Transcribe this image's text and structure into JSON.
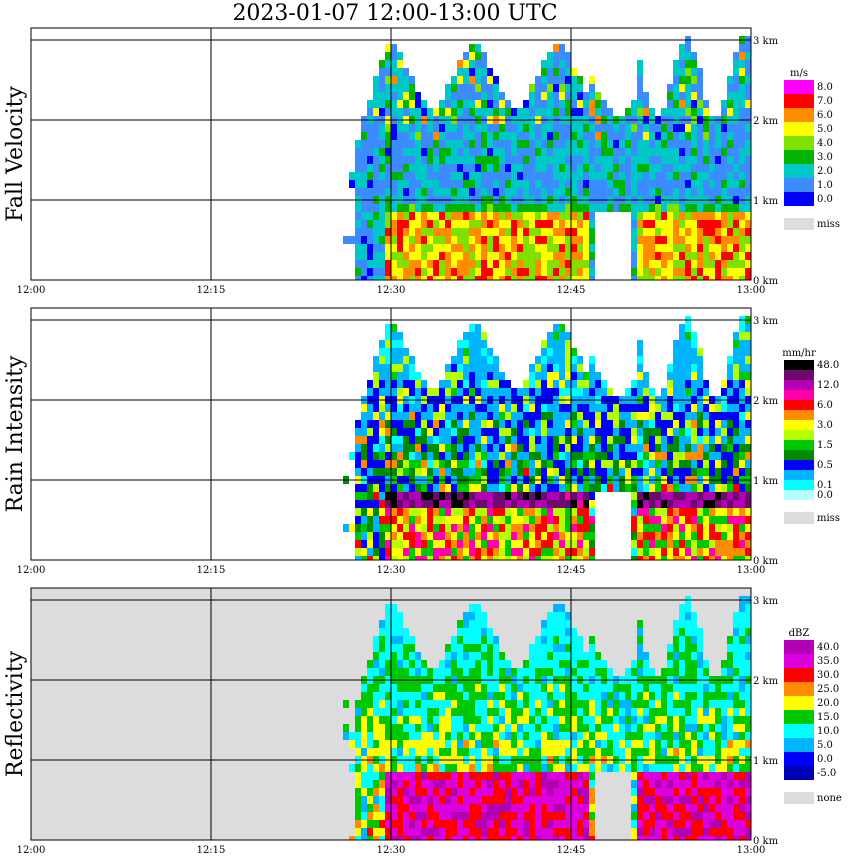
{
  "title": "2023-01-07   12:00-13:00 UTC",
  "x_ticks": [
    "12:00",
    "12:15",
    "12:30",
    "12:45",
    "13:00"
  ],
  "height_ticks": [
    "0 km",
    "1 km",
    "2 km",
    "3 km"
  ],
  "panels": [
    {
      "id": "fall-velocity",
      "ylabel": "Fall Velocity",
      "unit": "m/s",
      "legend": [
        {
          "label": "8.0",
          "color": "#ff00ff"
        },
        {
          "label": "7.0",
          "color": "#ff0000"
        },
        {
          "label": "6.0",
          "color": "#ff8c00"
        },
        {
          "label": "5.0",
          "color": "#ffff00"
        },
        {
          "label": "4.0",
          "color": "#80e000"
        },
        {
          "label": "3.0",
          "color": "#00b400"
        },
        {
          "label": "2.0",
          "color": "#00c8c8"
        },
        {
          "label": "1.0",
          "color": "#3c8cff"
        },
        {
          "label": "0.0",
          "color": "#0000ff"
        }
      ],
      "missing": {
        "label": "miss",
        "color": "#dcdcdc"
      }
    },
    {
      "id": "rain-intensity",
      "ylabel": "Rain Intensity",
      "unit": "mm/hr",
      "legend": [
        {
          "label": "48.0",
          "color": "#000000"
        },
        {
          "label": "",
          "color": "#6e0a6e"
        },
        {
          "label": "12.0",
          "color": "#b400b4"
        },
        {
          "label": "",
          "color": "#ff00aa"
        },
        {
          "label": "6.0",
          "color": "#ff0000"
        },
        {
          "label": "",
          "color": "#ff8c00"
        },
        {
          "label": "3.0",
          "color": "#ffff00"
        },
        {
          "label": "",
          "color": "#b4ff00"
        },
        {
          "label": "1.5",
          "color": "#00c800"
        },
        {
          "label": "",
          "color": "#008c00"
        },
        {
          "label": "0.5",
          "color": "#0000ff"
        },
        {
          "label": "",
          "color": "#00b4ff"
        },
        {
          "label": "0.1",
          "color": "#00ffff"
        },
        {
          "label": "0.0",
          "color": "#b4ffff"
        }
      ],
      "missing": {
        "label": "miss",
        "color": "#dcdcdc"
      }
    },
    {
      "id": "reflectivity",
      "ylabel": "Reflectivity",
      "unit": "dBZ",
      "legend": [
        {
          "label": "40.0",
          "color": "#b400b4"
        },
        {
          "label": "35.0",
          "color": "#dc00dc"
        },
        {
          "label": "30.0",
          "color": "#ff0000"
        },
        {
          "label": "25.0",
          "color": "#ff8c00"
        },
        {
          "label": "20.0",
          "color": "#ffff00"
        },
        {
          "label": "15.0",
          "color": "#00c800"
        },
        {
          "label": "10.0",
          "color": "#00ffff"
        },
        {
          "label": "5.0",
          "color": "#00b4ff"
        },
        {
          "label": "0.0",
          "color": "#0000ff"
        },
        {
          "label": "-5.0",
          "color": "#0000b4"
        }
      ],
      "missing": {
        "label": "none",
        "color": "#dcdcdc"
      }
    }
  ],
  "chart_data": [
    {
      "type": "heatmap",
      "title": "2023-01-07   12:00-13:00 UTC",
      "ylabel": "Fall Velocity",
      "colorbar_unit": "m/s",
      "x_range": [
        "12:00",
        "13:00"
      ],
      "y_range_km": [
        0,
        3.2
      ],
      "grid": true,
      "features": {
        "rain_layer_km": [
          0,
          0.9
        ],
        "rain_fall_velocity_mps": [
          4.0,
          7.0
        ],
        "snow_layer_km": [
          0.9,
          2.8
        ],
        "snow_fall_velocity_mps": [
          0.5,
          2.0
        ],
        "rain_periods": [
          [
            "12:30",
            "12:46"
          ],
          [
            "12:51",
            "13:00"
          ]
        ]
      }
    },
    {
      "type": "heatmap",
      "ylabel": "Rain Intensity",
      "colorbar_unit": "mm/hr",
      "x_range": [
        "12:00",
        "13:00"
      ],
      "y_range_km": [
        0,
        3.2
      ],
      "grid": true,
      "features": {
        "bright_band_km": 0.85,
        "bright_band_intensity_mmhr": 48.0,
        "rain_periods": [
          [
            "12:30",
            "12:46"
          ],
          [
            "12:51",
            "13:00"
          ]
        ]
      }
    },
    {
      "type": "heatmap",
      "ylabel": "Reflectivity",
      "colorbar_unit": "dBZ",
      "x_range": [
        "12:00",
        "13:00"
      ],
      "y_range_km": [
        0,
        3.2
      ],
      "grid": true,
      "features": {
        "bright_band_km": [
          0.0,
          0.85
        ],
        "bright_band_dbz": 40.0,
        "no_echo_background": "none",
        "rain_periods": [
          [
            "12:30",
            "12:46"
          ],
          [
            "12:51",
            "13:00"
          ]
        ]
      }
    }
  ]
}
